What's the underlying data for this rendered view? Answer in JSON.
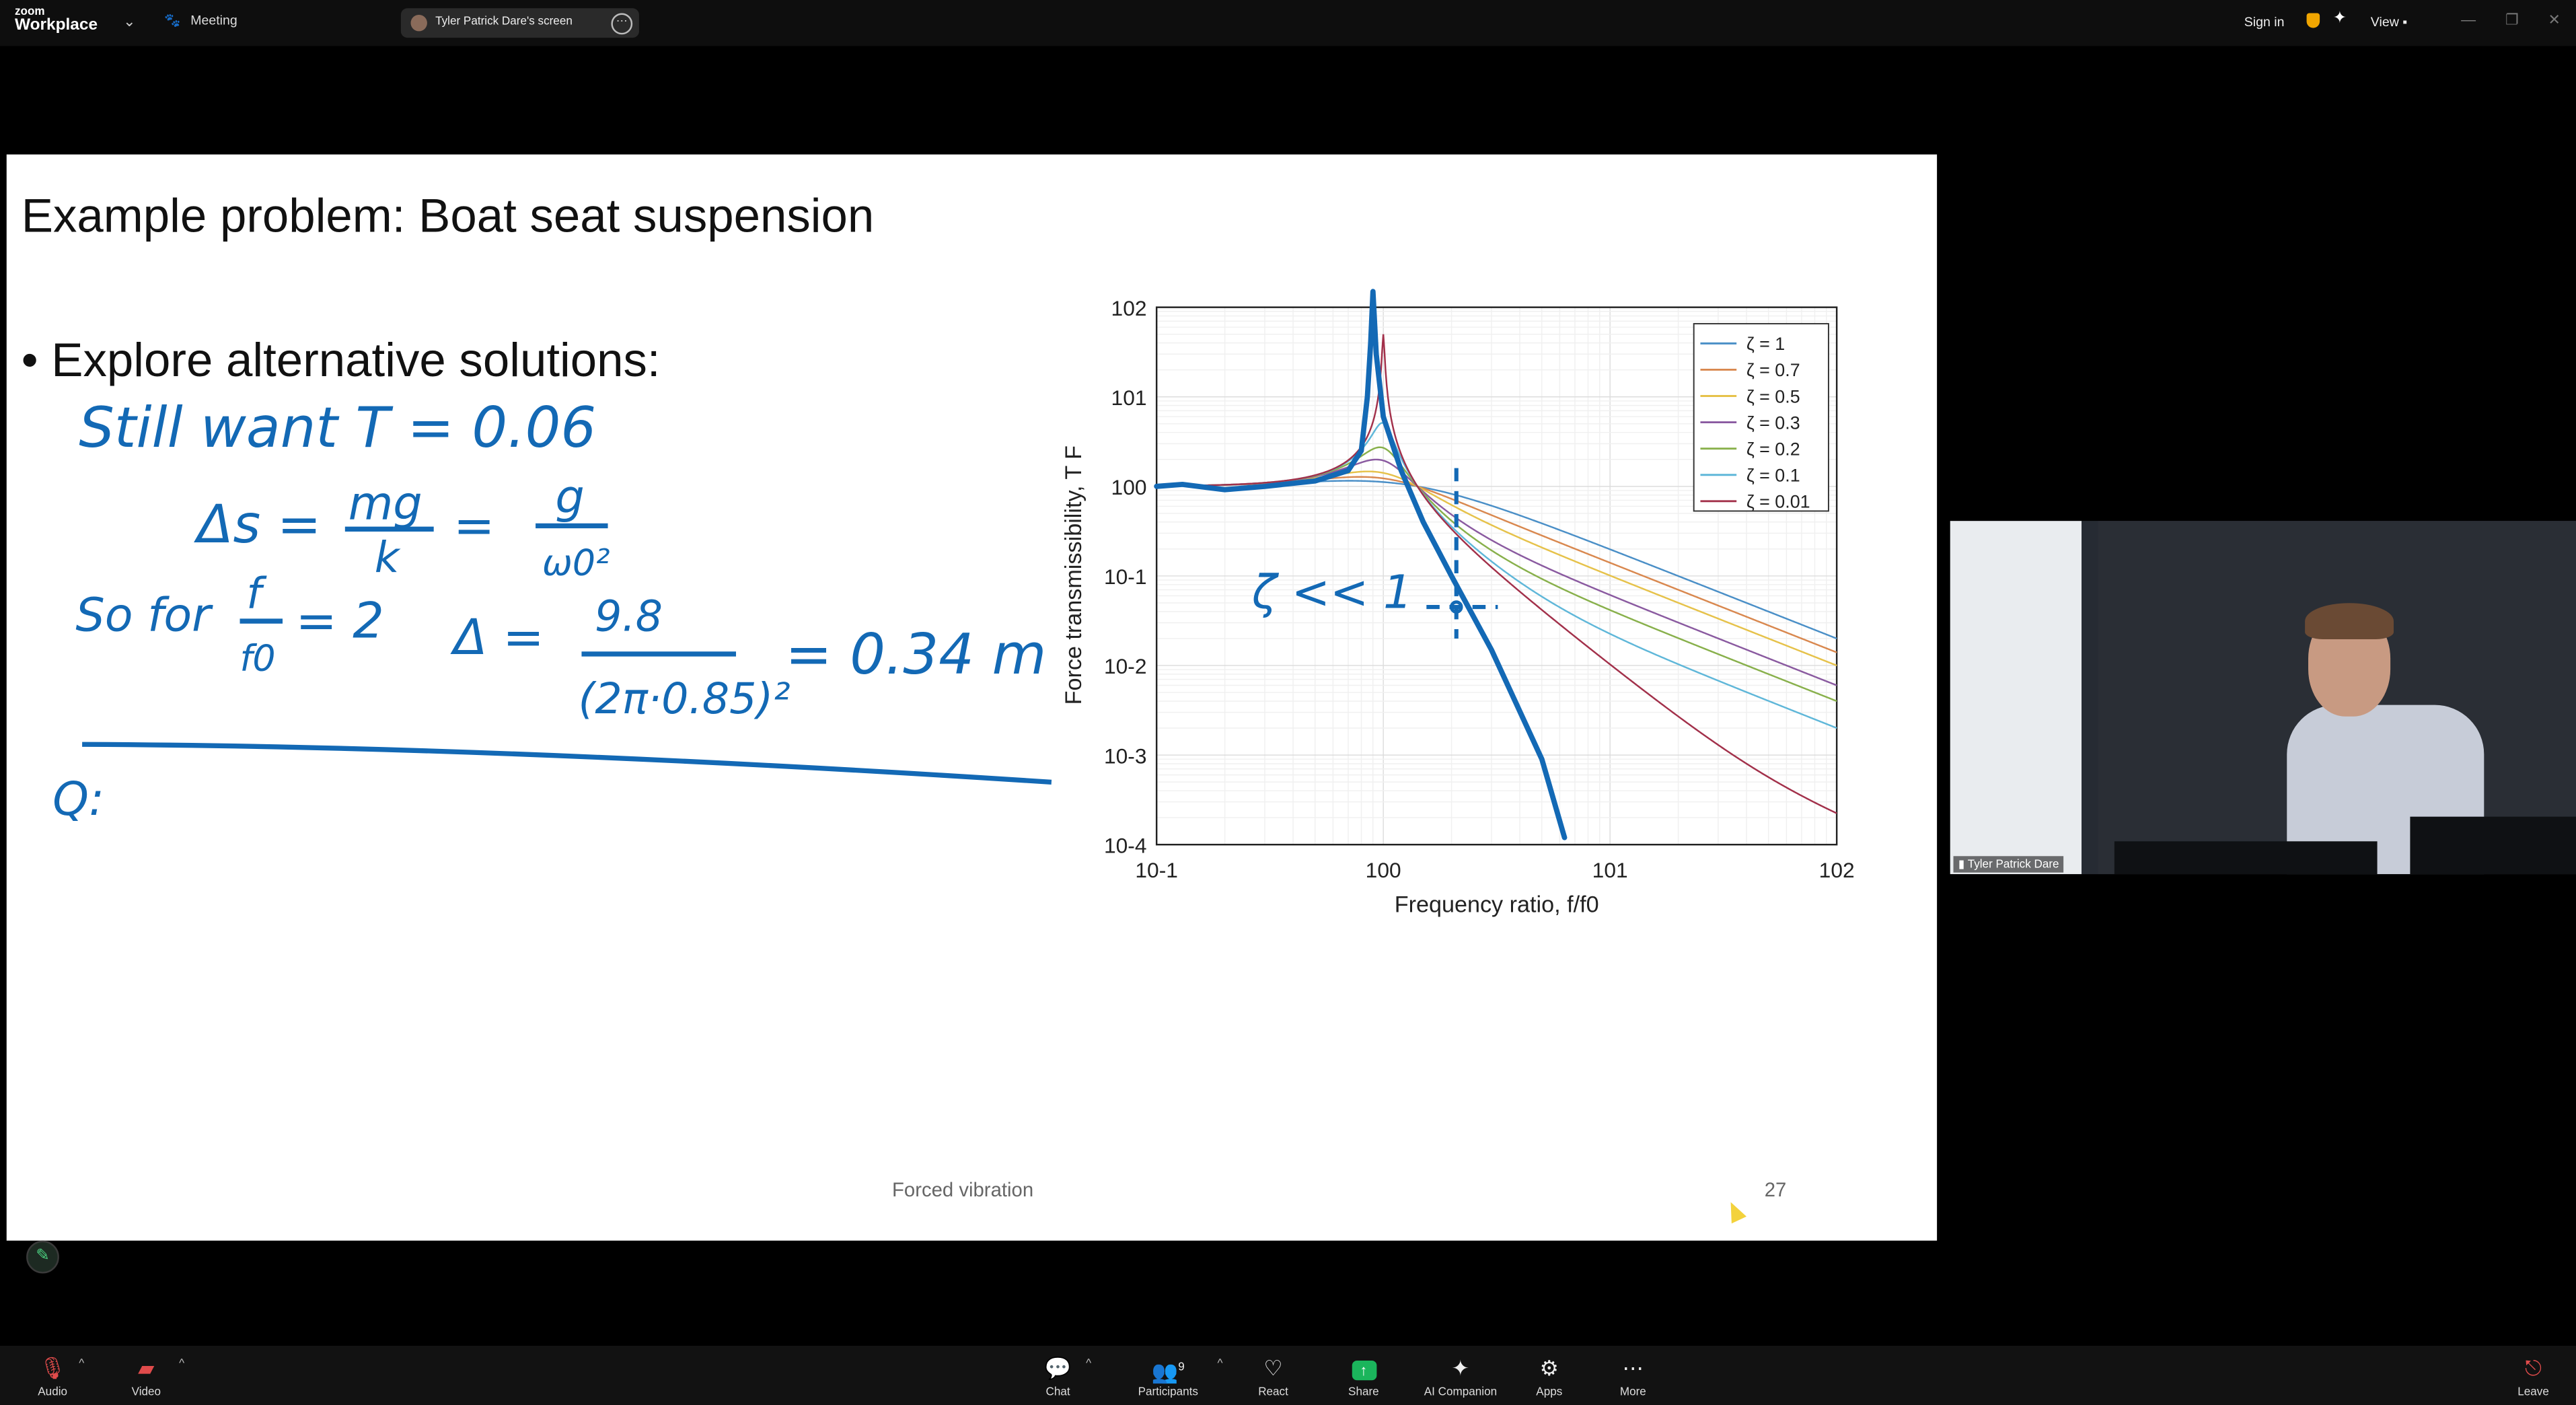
{
  "app": {
    "brand_small": "zoom",
    "brand": "Workplace"
  },
  "topbar": {
    "meeting_label": "Meeting",
    "shared_screen_label": "Tyler Patrick Dare's screen",
    "signin_label": "Sign in",
    "view_label": "View"
  },
  "slide": {
    "title": "Example problem: Boat seat suspension",
    "bullet": "• Explore alternative solutions:",
    "footer_center": "Forced vibration",
    "page_number": "27"
  },
  "handwriting": {
    "line1": "Still want  T = 0.06",
    "delta_s": "Δs =",
    "mg": "mg",
    "k": "k",
    "eq2": "=",
    "g": "g",
    "w0sq": "ω0²",
    "so_for": "So for",
    "f": "f",
    "f0": "f0",
    "eq_two": "= 2",
    "delta": "Δ =",
    "num": "9.8",
    "den": "(2π·0.85)²",
    "result": "= 0.34 m",
    "q": "Q:",
    "zeta_note": "ζ << 1"
  },
  "chart_data": {
    "type": "line",
    "xscale": "log",
    "yscale": "log",
    "xlabel": "Frequency ratio, f/f0",
    "ylabel": "Force transmissibility, T F",
    "xlim": [
      0.1,
      100
    ],
    "ylim": [
      0.0001,
      100
    ],
    "x_ticks": [
      "10-1",
      "100",
      "101",
      "102"
    ],
    "y_ticks": [
      "10-4",
      "10-3",
      "10-2",
      "10-1",
      "100",
      "101",
      "102"
    ],
    "grid": true,
    "legend_position": "top-right",
    "legend": [
      "ζ = 1",
      "ζ = 0.7",
      "ζ = 0.5",
      "ζ = 0.3",
      "ζ = 0.2",
      "ζ = 0.1",
      "ζ = 0.01"
    ],
    "series": [
      {
        "name": "ζ = 1",
        "zeta": 1,
        "color": "#4a8fc7"
      },
      {
        "name": "ζ = 0.7",
        "zeta": 0.7,
        "color": "#d9884f"
      },
      {
        "name": "ζ = 0.5",
        "zeta": 0.5,
        "color": "#e6c24a"
      },
      {
        "name": "ζ = 0.3",
        "zeta": 0.3,
        "color": "#8a5aa0"
      },
      {
        "name": "ζ = 0.2",
        "zeta": 0.2,
        "color": "#88b04b"
      },
      {
        "name": "ζ = 0.1",
        "zeta": 0.1,
        "color": "#5fb7d9"
      },
      {
        "name": "ζ = 0.01",
        "zeta": 0.01,
        "color": "#a2304a"
      }
    ],
    "annotation_curve": {
      "name": "hand-drawn undamped curve",
      "color": "#1369b5",
      "x": [
        0.1,
        0.13,
        0.2,
        0.3,
        0.5,
        0.7,
        0.8,
        0.85,
        0.88,
        0.9,
        0.93,
        1.0,
        1.2,
        1.5,
        2.0,
        3.0,
        5.0,
        6.3
      ],
      "y": [
        1.0,
        1.05,
        0.92,
        1.0,
        1.15,
        1.5,
        2.5,
        10,
        40,
        150,
        30,
        6,
        1.5,
        0.4,
        0.1,
        0.015,
        0.0009,
        0.00012
      ]
    }
  },
  "participant_video": {
    "name": "Tyler Patrick Dare"
  },
  "toolbar": {
    "audio": "Audio",
    "video": "Video",
    "chat": "Chat",
    "participants": "Participants",
    "participants_count": "9",
    "react": "React",
    "share": "Share",
    "ai_companion": "AI Companion",
    "apps": "Apps",
    "more": "More",
    "leave": "Leave"
  }
}
